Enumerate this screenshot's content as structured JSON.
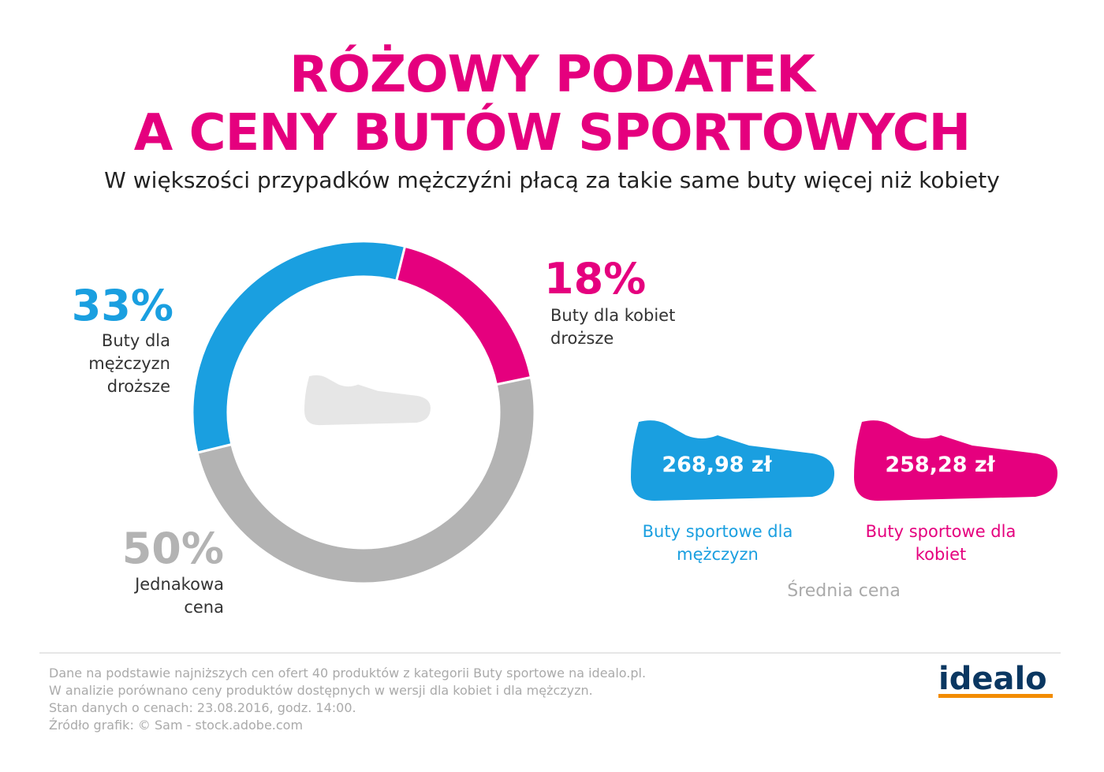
{
  "chart_data": {
    "type": "donut",
    "title": [
      "RÓŻOWY PODATEK",
      "A CENY BUTÓW SPORTOWYCH"
    ],
    "subtitle": "W większości przypadków mężczyźni płacą za takie same buty więcej niż kobiety",
    "categories": [
      "Buty dla kobiet droższe",
      "Jednakowa cena",
      "Buty dla mężczyzn droższe"
    ],
    "values": [
      18,
      50,
      33
    ],
    "value_labels": [
      "18%",
      "50%",
      "33%"
    ],
    "colors": [
      "#e5007e",
      "#b3b3b3",
      "#1a9fe0"
    ]
  },
  "prices": {
    "items": [
      {
        "price": "268,98 zł",
        "label": "Buty sportowe dla mężczyzn",
        "color": "#1a9fe0"
      },
      {
        "price": "258,28 zł",
        "label": "Buty sportowe dla kobiet",
        "color": "#e5007e"
      }
    ],
    "caption": "Średnia cena"
  },
  "footer": {
    "lines": [
      "Dane na podstawie najniższych cen ofert 40 produktów z kategorii Buty sportowe na idealo.pl.",
      "W analizie porównano ceny produktów dostępnych w wersji dla kobiet i dla mężczyzn.",
      "Stan danych o cenach: 23.08.2016, godz. 14:00.",
      "Źródło grafik: © Sam - stock.adobe.com"
    ],
    "logo": "idealo"
  }
}
